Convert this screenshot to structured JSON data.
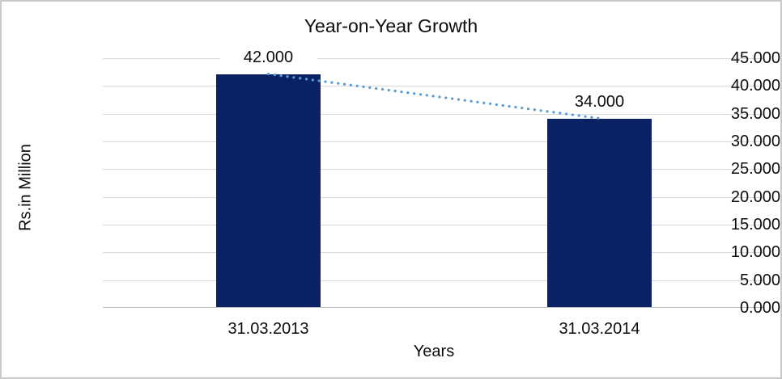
{
  "chart_data": {
    "type": "bar",
    "title": "Year-on-Year Growth",
    "xlabel": "Years",
    "ylabel": "Rs.in Million",
    "categories": [
      "31.03.2013",
      "31.03.2014"
    ],
    "values": [
      42.0,
      34.0
    ],
    "data_labels": [
      "42.000",
      "34.000"
    ],
    "y_ticks": [
      "45.000",
      "40.000",
      "35.000",
      "30.000",
      "25.000",
      "20.000",
      "15.000",
      "10.000",
      "5.000",
      "0.000"
    ],
    "ylim": [
      0,
      45
    ],
    "grid": "horizontal-on",
    "legend": "none",
    "trendline": {
      "style": "dotted",
      "from_value": 42.0,
      "to_value": 34.0,
      "color": "#5b9bd5"
    },
    "colors": {
      "bar": "#0a2264",
      "gridline": "#d9d9d9",
      "axis_line": "#bfbfbf",
      "text": "#0d0d0d",
      "border": "#c9c9c9",
      "background": "#ffffff"
    }
  }
}
